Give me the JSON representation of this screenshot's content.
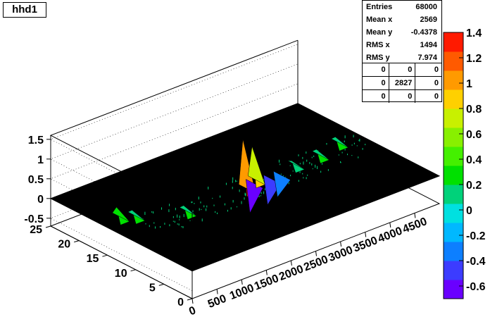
{
  "window": {
    "title": "hhd1"
  },
  "stats": {
    "rows": [
      {
        "label": "Entries",
        "value": "68000"
      },
      {
        "label": "Mean x",
        "value": "2569"
      },
      {
        "label": "Mean y",
        "value": "-0.4378"
      },
      {
        "label": "RMS x",
        "value": "1494"
      },
      {
        "label": "RMS y",
        "value": "7.974"
      }
    ],
    "cells": [
      [
        "0",
        "0",
        "0"
      ],
      [
        "0",
        "2827",
        "0"
      ],
      [
        "0",
        "0",
        "0"
      ]
    ]
  },
  "colors": {
    "palette": [
      "#6a00ff",
      "#3c3cff",
      "#0d7fff",
      "#00b8ff",
      "#00e0e0",
      "#00d27a",
      "#00e000",
      "#44f000",
      "#88f000",
      "#c8f000",
      "#ffd000",
      "#ff9a00",
      "#ff5a00",
      "#ff1a00"
    ],
    "surface_fill": "#000000"
  },
  "chart_data": {
    "type": "surface",
    "title": "hhd1",
    "x_ticks": [
      "0",
      "500",
      "1000",
      "1500",
      "2000",
      "2500",
      "3000",
      "3500",
      "4000",
      "4500"
    ],
    "y_ticks": [
      "0",
      "5",
      "10",
      "15",
      "20",
      "25"
    ],
    "z_ticks": [
      "-0.5",
      "0",
      "0.5",
      "1",
      "1.5"
    ],
    "palette_ticks": [
      "-0.6",
      "-0.4",
      "-0.2",
      "0",
      "0.2",
      "0.4",
      "0.6",
      "0.8",
      "1",
      "1.2",
      "1.4"
    ],
    "xlim": [
      0,
      5000
    ],
    "ylim": [
      0,
      25
    ],
    "zlim": [
      -0.7,
      1.6
    ],
    "palette_range": [
      -0.7,
      1.4
    ],
    "peaks": [
      {
        "x": 300,
        "y": 16,
        "z": 0.3
      },
      {
        "x": 500,
        "y": 15,
        "z": 0.2
      },
      {
        "x": 1200,
        "y": 12,
        "z": 0.2
      },
      {
        "x": 2400,
        "y": 12,
        "z": 1.3
      },
      {
        "x": 2600,
        "y": 12.5,
        "z": -0.7
      },
      {
        "x": 2700,
        "y": 13,
        "z": 0.9
      },
      {
        "x": 2900,
        "y": 12,
        "z": -0.6
      },
      {
        "x": 3100,
        "y": 12,
        "z": -0.5
      },
      {
        "x": 3500,
        "y": 13,
        "z": 0.15
      },
      {
        "x": 4000,
        "y": 13,
        "z": 0.2
      },
      {
        "x": 4500,
        "y": 14,
        "z": 0.2
      }
    ]
  }
}
